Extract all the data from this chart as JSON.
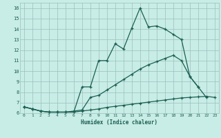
{
  "xlabel": "Humidex (Indice chaleur)",
  "bg_color": "#c8ece6",
  "grid_color": "#9bbfba",
  "line_color": "#1a5f52",
  "xlim": [
    -0.5,
    23.5
  ],
  "ylim": [
    6,
    16.5
  ],
  "xticks": [
    0,
    1,
    2,
    3,
    4,
    5,
    6,
    7,
    8,
    9,
    10,
    11,
    12,
    13,
    14,
    15,
    16,
    17,
    18,
    19,
    20,
    21,
    22,
    23
  ],
  "yticks": [
    6,
    7,
    8,
    9,
    10,
    11,
    12,
    13,
    14,
    15,
    16
  ],
  "line1_x": [
    0,
    1,
    2,
    3,
    4,
    5,
    6,
    7,
    8,
    9,
    10,
    11,
    12,
    13,
    14,
    15,
    16,
    17,
    18,
    19,
    20,
    21,
    22
  ],
  "line1_y": [
    6.6,
    6.4,
    6.2,
    6.1,
    6.1,
    6.1,
    6.1,
    8.5,
    8.5,
    11.0,
    11.0,
    12.6,
    12.1,
    14.1,
    16.0,
    14.2,
    14.3,
    14.0,
    13.5,
    13.0,
    9.5,
    8.5,
    7.5
  ],
  "line2_x": [
    0,
    1,
    2,
    3,
    4,
    5,
    6,
    7,
    8,
    9,
    10,
    11,
    12,
    13,
    14,
    15,
    16,
    17,
    18,
    19,
    20,
    21
  ],
  "line2_y": [
    6.6,
    6.4,
    6.2,
    6.1,
    6.1,
    6.1,
    6.2,
    6.3,
    7.5,
    7.7,
    8.2,
    8.7,
    9.2,
    9.7,
    10.2,
    10.6,
    10.9,
    11.2,
    11.5,
    11.0,
    9.5,
    8.5
  ],
  "line3_x": [
    0,
    1,
    2,
    3,
    4,
    5,
    6,
    7,
    8,
    9,
    10,
    11,
    12,
    13,
    14,
    15,
    16,
    17,
    18,
    19,
    20,
    21,
    22,
    23
  ],
  "line3_y": [
    6.6,
    6.4,
    6.2,
    6.1,
    6.1,
    6.1,
    6.1,
    6.2,
    6.3,
    6.4,
    6.55,
    6.65,
    6.75,
    6.85,
    6.95,
    7.05,
    7.15,
    7.25,
    7.35,
    7.45,
    7.5,
    7.55,
    7.6,
    7.5
  ]
}
